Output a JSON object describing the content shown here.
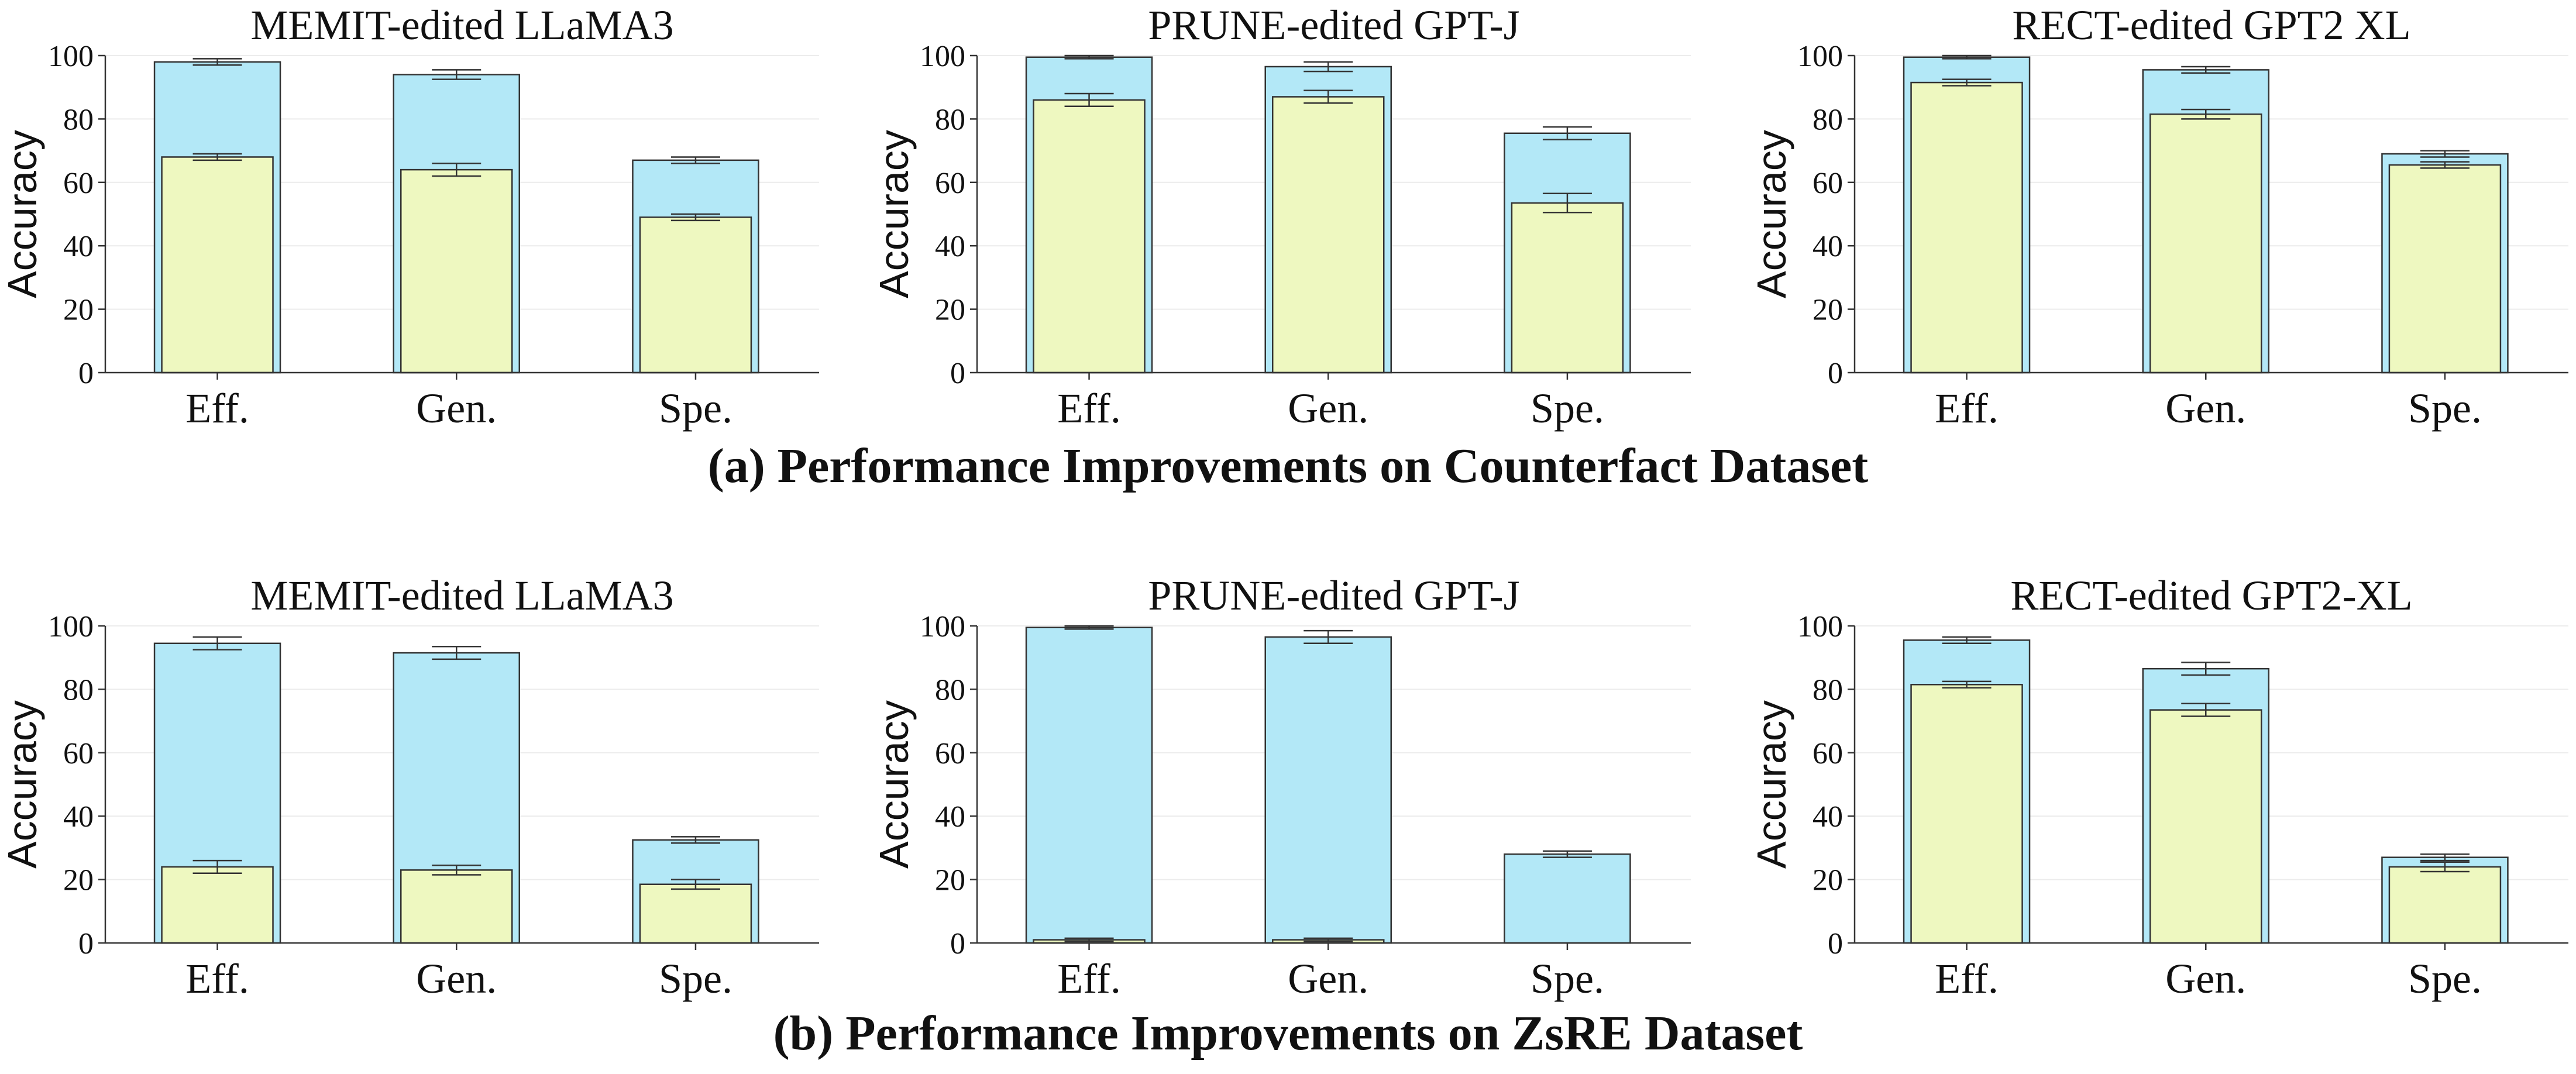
{
  "colors": {
    "total_bar": "#b3e8f7",
    "base_bar": "#eef8c0",
    "edge": "#333333"
  },
  "sections": [
    {
      "caption": "(a) Performance Improvements on Counterfact Dataset"
    },
    {
      "caption": "(b) Performance Improvements on ZsRE Dataset"
    }
  ],
  "chart_data": [
    {
      "type": "bar",
      "section": 0,
      "title": "MEMIT-edited LLaMA3",
      "ylabel": "Accuracy",
      "ylim": [
        0,
        100
      ],
      "yticks": [
        0,
        20,
        40,
        60,
        80,
        100
      ],
      "categories": [
        "Eff.",
        "Gen.",
        "Spe."
      ],
      "series": [
        {
          "values": [
            98,
            94,
            67
          ],
          "error": [
            1,
            1.5,
            1
          ]
        },
        {
          "values": [
            68,
            64,
            49
          ],
          "error": [
            1,
            2,
            1
          ]
        }
      ]
    },
    {
      "type": "bar",
      "section": 0,
      "title": "PRUNE-edited GPT-J",
      "ylabel": "Accuracy",
      "ylim": [
        0,
        100
      ],
      "yticks": [
        0,
        20,
        40,
        60,
        80,
        100
      ],
      "categories": [
        "Eff.",
        "Gen.",
        "Spe."
      ],
      "series": [
        {
          "values": [
            99.5,
            96.5,
            75.5
          ],
          "error": [
            0.5,
            1.5,
            2
          ]
        },
        {
          "values": [
            86,
            87,
            53.5
          ],
          "error": [
            2,
            2,
            3
          ]
        }
      ]
    },
    {
      "type": "bar",
      "section": 0,
      "title": "RECT-edited GPT2 XL",
      "ylabel": "Accuracy",
      "ylim": [
        0,
        100
      ],
      "yticks": [
        0,
        20,
        40,
        60,
        80,
        100
      ],
      "categories": [
        "Eff.",
        "Gen.",
        "Spe."
      ],
      "series": [
        {
          "values": [
            99.5,
            95.5,
            69
          ],
          "error": [
            0.5,
            1,
            1
          ]
        },
        {
          "values": [
            91.5,
            81.5,
            65.5
          ],
          "error": [
            1,
            1.5,
            1
          ]
        }
      ]
    },
    {
      "type": "bar",
      "section": 1,
      "title": "MEMIT-edited LLaMA3",
      "ylabel": "Accuracy",
      "ylim": [
        0,
        100
      ],
      "yticks": [
        0,
        20,
        40,
        60,
        80,
        100
      ],
      "categories": [
        "Eff.",
        "Gen.",
        "Spe."
      ],
      "series": [
        {
          "values": [
            94.5,
            91.5,
            32.5
          ],
          "error": [
            2,
            2,
            1
          ]
        },
        {
          "values": [
            24,
            23,
            18.5
          ],
          "error": [
            2,
            1.5,
            1.5
          ]
        }
      ]
    },
    {
      "type": "bar",
      "section": 1,
      "title": "PRUNE-edited GPT-J",
      "ylabel": "Accuracy",
      "ylim": [
        0,
        100
      ],
      "yticks": [
        0,
        20,
        40,
        60,
        80,
        100
      ],
      "categories": [
        "Eff.",
        "Gen.",
        "Spe."
      ],
      "series": [
        {
          "values": [
            99.5,
            96.5,
            28
          ],
          "error": [
            0.5,
            2,
            1
          ]
        },
        {
          "values": [
            1,
            1,
            0
          ],
          "error": [
            0.5,
            0.5,
            0
          ]
        }
      ]
    },
    {
      "type": "bar",
      "section": 1,
      "title": "RECT-edited GPT2-XL",
      "ylabel": "Accuracy",
      "ylim": [
        0,
        100
      ],
      "yticks": [
        0,
        20,
        40,
        60,
        80,
        100
      ],
      "categories": [
        "Eff.",
        "Gen.",
        "Spe."
      ],
      "series": [
        {
          "values": [
            95.5,
            86.5,
            27
          ],
          "error": [
            1,
            2,
            1
          ]
        },
        {
          "values": [
            81.5,
            73.5,
            24
          ],
          "error": [
            1,
            2,
            1.5
          ]
        }
      ]
    }
  ]
}
